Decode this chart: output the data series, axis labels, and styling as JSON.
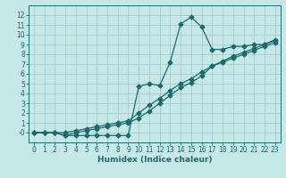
{
  "xlabel": "Humidex (Indice chaleur)",
  "bg_color": "#c6e8e6",
  "grid_color": "#a8cccc",
  "line_color": "#1a6b6b",
  "xlim": [
    -0.5,
    23.5
  ],
  "ylim": [
    -1.0,
    13.0
  ],
  "xticks": [
    0,
    1,
    2,
    3,
    4,
    5,
    6,
    7,
    8,
    9,
    10,
    11,
    12,
    13,
    14,
    15,
    16,
    17,
    18,
    19,
    20,
    21,
    22,
    23
  ],
  "yticks": [
    0,
    1,
    2,
    3,
    4,
    5,
    6,
    7,
    8,
    9,
    10,
    11,
    12
  ],
  "ytick_labels": [
    "-0",
    "1",
    "2",
    "3",
    "4",
    "5",
    "6",
    "7",
    "8",
    "9",
    "10",
    "11",
    "12"
  ],
  "line1_x": [
    0,
    1,
    2,
    3,
    4,
    5,
    6,
    7,
    8,
    9,
    10,
    11,
    12,
    13,
    14,
    15,
    16,
    17,
    18,
    19,
    20,
    21,
    22,
    23
  ],
  "line1_y": [
    0.0,
    0.0,
    0.0,
    -0.3,
    -0.3,
    -0.3,
    -0.3,
    -0.3,
    -0.3,
    -0.3,
    4.7,
    5.0,
    4.8,
    7.2,
    11.1,
    11.8,
    10.8,
    8.5,
    8.5,
    8.8,
    8.8,
    9.0,
    9.0,
    9.5
  ],
  "line2_x": [
    0,
    1,
    2,
    3,
    4,
    5,
    6,
    7,
    8,
    9,
    10,
    11,
    12,
    13,
    14,
    15,
    16,
    17,
    18,
    19,
    20,
    21,
    22,
    23
  ],
  "line2_y": [
    0.0,
    0.0,
    0.0,
    0.0,
    0.2,
    0.4,
    0.6,
    0.8,
    1.0,
    1.2,
    2.0,
    2.8,
    3.5,
    4.3,
    5.0,
    5.5,
    6.2,
    6.8,
    7.3,
    7.8,
    8.2,
    8.6,
    9.0,
    9.4
  ],
  "line3_x": [
    0,
    1,
    2,
    3,
    4,
    5,
    6,
    7,
    8,
    9,
    10,
    11,
    12,
    13,
    14,
    15,
    16,
    17,
    18,
    19,
    20,
    21,
    22,
    23
  ],
  "line3_y": [
    0.0,
    0.0,
    0.0,
    -0.3,
    0.0,
    0.2,
    0.4,
    0.6,
    0.8,
    1.0,
    1.5,
    2.2,
    3.0,
    3.8,
    4.6,
    5.1,
    5.8,
    6.8,
    7.2,
    7.6,
    8.0,
    8.4,
    8.8,
    9.2
  ],
  "tick_fontsize": 5.5,
  "xlabel_fontsize": 6.5
}
